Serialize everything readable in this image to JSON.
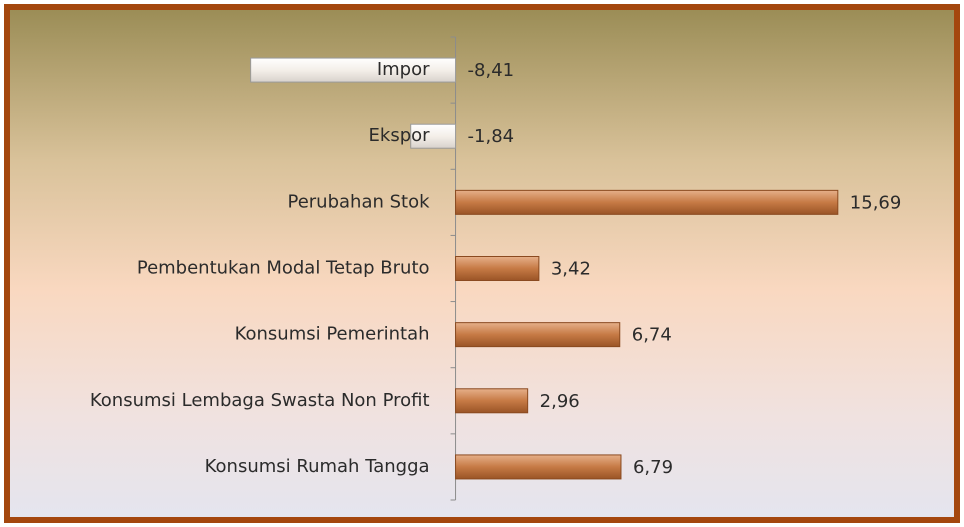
{
  "chart_data": {
    "type": "hbar",
    "categories": [
      "Impor",
      "Ekspor",
      "Perubahan Stok",
      "Pembentukan Modal Tetap Bruto",
      "Konsumsi Pemerintah",
      "Konsumsi Lembaga Swasta Non Profit",
      "Konsumsi Rumah Tangga"
    ],
    "values": [
      -8.41,
      -1.84,
      15.69,
      3.42,
      6.74,
      2.96,
      6.79
    ],
    "value_labels": [
      "-8,41",
      "-1,84",
      "15,69",
      "3,42",
      "6,74",
      "2,96",
      "6,79"
    ],
    "color": "#c67a45",
    "negative_color": "#f4efe9",
    "xlim": [
      -18,
      20.5
    ]
  }
}
